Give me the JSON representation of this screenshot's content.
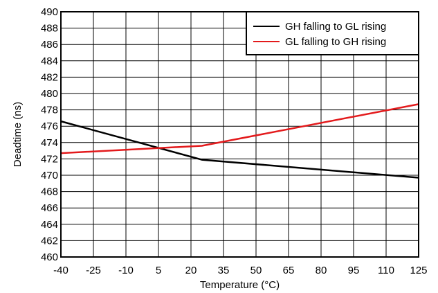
{
  "chart_data": {
    "type": "line",
    "xlabel": "Temperature (°C)",
    "ylabel": "Deadtime (ns)",
    "x_ticks": [
      -40,
      -25,
      -10,
      5,
      20,
      35,
      50,
      65,
      80,
      95,
      110,
      125
    ],
    "y_ticks": [
      460,
      462,
      464,
      466,
      468,
      470,
      472,
      474,
      476,
      478,
      480,
      482,
      484,
      486,
      488,
      490
    ],
    "xlim": [
      -40,
      125
    ],
    "ylim": [
      460,
      490
    ],
    "grid": true,
    "legend_position": "top-right",
    "series": [
      {
        "name": "GH falling to GL rising",
        "color": "#000000",
        "x": [
          -40,
          25,
          125
        ],
        "y": [
          476.6,
          471.9,
          469.7
        ]
      },
      {
        "name": "GL falling to GH rising",
        "color": "#e31a1c",
        "x": [
          -40,
          25,
          125
        ],
        "y": [
          472.7,
          473.6,
          478.7
        ]
      }
    ]
  }
}
